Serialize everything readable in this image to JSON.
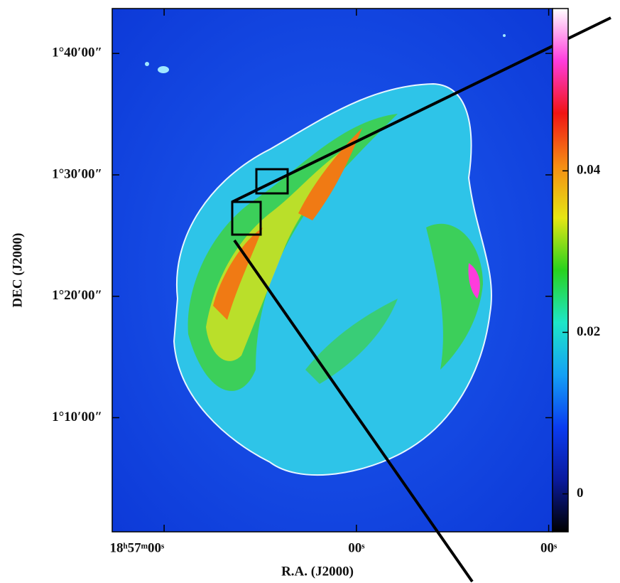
{
  "chart_data": {
    "type": "image",
    "xlabel": "R.A.  (J2000)",
    "ylabel": "DEC (J2000)",
    "xlim": [
      57.27,
      54.98
    ],
    "xticks": [
      {
        "value": 57,
        "label": "18ʰ57ᵐ00ˢ"
      },
      {
        "value": 56,
        "label": "00ˢ"
      },
      {
        "value": 55,
        "label": "00ˢ"
      }
    ],
    "ylim": [
      60.6,
      103.7
    ],
    "yticks": [
      {
        "value": 70,
        "label": "1°10′00″"
      },
      {
        "value": 80,
        "label": "1°20′00″"
      },
      {
        "value": 90,
        "label": "1°30′00″"
      },
      {
        "value": 100,
        "label": "1°40′00″"
      }
    ],
    "clim": [
      -0.0047,
      0.0601
    ],
    "cticks": [
      0,
      0.02,
      0.04
    ],
    "colormap": [
      "#000000",
      "#0a1a9e",
      "#0a3cf0",
      "#14a0f5",
      "#1ee6c8",
      "#28d21e",
      "#e6e614",
      "#f58c14",
      "#f01414",
      "#ff3cdc",
      "#ffffff"
    ]
  }
}
